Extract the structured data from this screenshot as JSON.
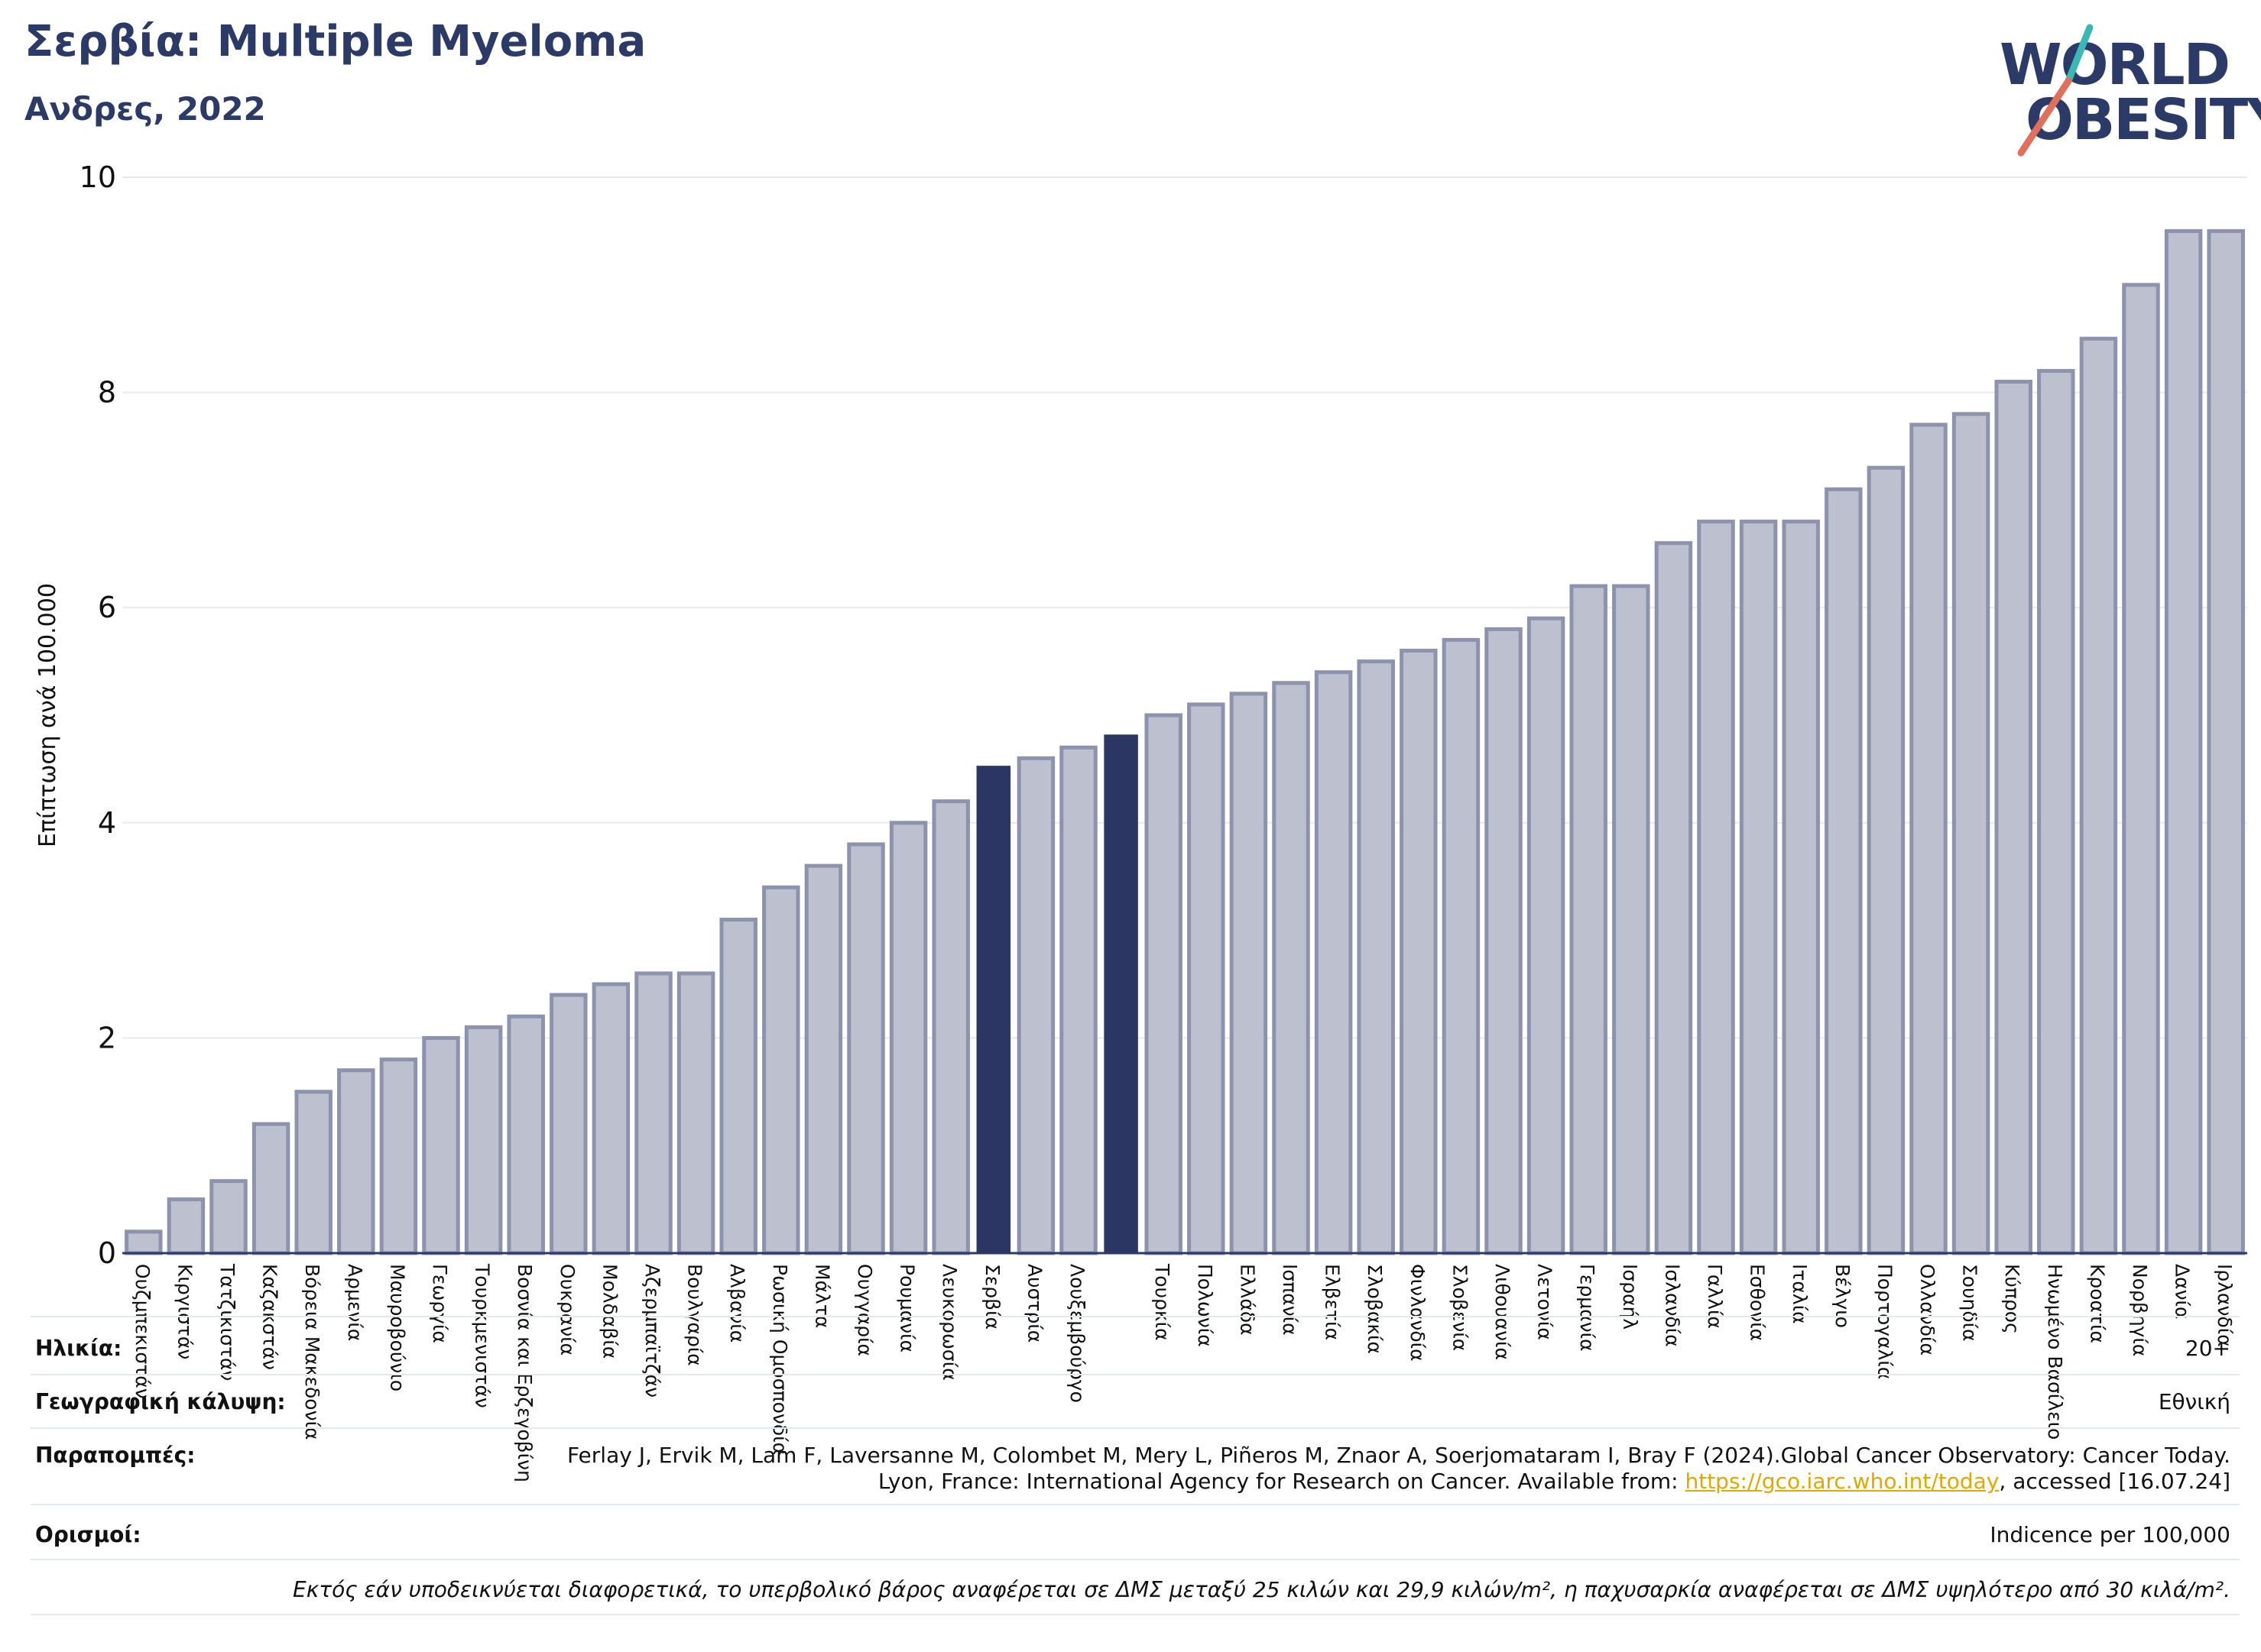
{
  "header": {
    "title": "Σερβία: Multiple Myeloma",
    "subtitle": "Ανδρες, 2022"
  },
  "logo": {
    "line1": "WORLD",
    "line2": "OBESITY",
    "brand_color": "#2b3a66",
    "slash_colors": [
      "#3bb8b5",
      "#e0705b"
    ]
  },
  "colors": {
    "bar_default": "#bcc0cf",
    "bar_default_edge": "#8d93ad",
    "bar_highlight": "#2b3663",
    "grid": "#e6e9ef",
    "axis": "#2b3a66"
  },
  "chart_data": {
    "type": "bar",
    "ylabel": "Επίπτωση ανά 100.000",
    "ylim": [
      0,
      10
    ],
    "yticks": [
      0,
      2,
      4,
      6,
      8,
      10
    ],
    "grid": true,
    "categories": [
      "Ουζμπεκιστάν",
      "Κιργιστάν",
      "Τατζικιστάν",
      "Καζακστάν",
      "Βόρεια Μακεδονία",
      "Αρμενία",
      "Μαυροβούνιο",
      "Γεωργία",
      "Τουρκμενιστάν",
      "Βοσνία και Ερζεγοβίνη",
      "Ουκρανία",
      "Μολδαβία",
      "Αζερμπαϊτζάν",
      "Βουλγαρία",
      "Αλβανία",
      "Ρωσική Ομοσπονδία",
      "Μάλτα",
      "Ουγγαρία",
      "Ρουμανία",
      "Λευκορωσία",
      "Σερβία",
      "Αυστρία",
      "Λουξεμβούργο",
      "",
      "Τουρκία",
      "Πολωνία",
      "Ελλάδα",
      "Ισπανία",
      "Ελβετία",
      "Σλοβακία",
      "Φινλανδία",
      "Σλοβενία",
      "Λιθουανία",
      "Λετονία",
      "Γερμανία",
      "Ισραήλ",
      "Ισλανδία",
      "Γαλλία",
      "Εσθονία",
      "Ιταλία",
      "Βέλγιο",
      "Πορτογαλία",
      "Ολλανδία",
      "Σουηδία",
      "Κύπρος",
      "Ηνωμένο Βασίλειο",
      "Κροατία",
      "Νορβηγία",
      "Δανία",
      "Ιρλανδία"
    ],
    "values": [
      0.2,
      0.5,
      0.67,
      1.2,
      1.5,
      1.7,
      1.8,
      2.0,
      2.1,
      2.2,
      2.4,
      2.5,
      2.6,
      2.6,
      3.1,
      3.4,
      3.6,
      3.8,
      4.0,
      4.2,
      4.53,
      4.6,
      4.7,
      4.82,
      5.0,
      5.1,
      5.2,
      5.3,
      5.4,
      5.5,
      5.6,
      5.7,
      5.8,
      5.9,
      6.2,
      6.2,
      6.6,
      6.8,
      6.8,
      6.8,
      7.1,
      7.3,
      7.7,
      7.8,
      8.1,
      8.2,
      8.5,
      9.0,
      9.5,
      9.5
    ],
    "highlight": [
      20,
      23
    ]
  },
  "footer": {
    "age_label": "Ηλικία:",
    "age_value": "20+",
    "coverage_label": "Γεωγραφική κάλυψη:",
    "coverage_value": "Εθνική",
    "refs_label": "Παραπομπές:",
    "refs_text": "Ferlay J, Ervik M, Lam F, Laversanne M, Colombet M, Mery L, Piñeros M, Znaor A, Soerjomataram I, Bray F (2024).Global Cancer Observatory: Cancer Today. Lyon, France: International Agency for Research on Cancer. Available from: ",
    "refs_link": "https://gco.iarc.who.int/today",
    "refs_tail": ", accessed [16.07.24]",
    "defs_label": "Ορισμοί:",
    "defs_value": "Indicence per 100,000",
    "note": "Εκτός εάν υποδεικνύεται διαφορετικά, το υπερβολικό βάρος αναφέρεται σε ΔΜΣ μεταξύ 25 κιλών και 29,9 κιλών/m², η παχυσαρκία αναφέρεται σε ΔΜΣ υψηλότερο από 30 κιλά/m²."
  }
}
